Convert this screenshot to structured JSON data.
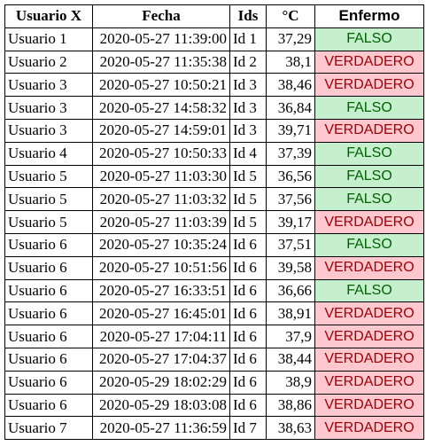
{
  "table": {
    "headers": [
      "Usuario X",
      "Fecha",
      "Ids",
      "°C",
      "Enfermo"
    ],
    "rows": [
      {
        "usuario": "Usuario 1",
        "fecha": "2020-05-27 11:39:00",
        "id": "Id 1",
        "temp": "37,29",
        "enfermo": "FALSO"
      },
      {
        "usuario": "Usuario 2",
        "fecha": "2020-05-27 11:35:38",
        "id": "Id 2",
        "temp": "38,1",
        "enfermo": "VERDADERO"
      },
      {
        "usuario": "Usuario 3",
        "fecha": "2020-05-27 10:50:21",
        "id": "Id 3",
        "temp": "38,46",
        "enfermo": "VERDADERO"
      },
      {
        "usuario": "Usuario 3",
        "fecha": "2020-05-27 14:58:32",
        "id": "Id 3",
        "temp": "36,84",
        "enfermo": "FALSO"
      },
      {
        "usuario": "Usuario 3",
        "fecha": "2020-05-27 14:59:01",
        "id": "Id 3",
        "temp": "39,71",
        "enfermo": "VERDADERO"
      },
      {
        "usuario": "Usuario 4",
        "fecha": "2020-05-27 10:50:33",
        "id": "Id 4",
        "temp": "37,39",
        "enfermo": "FALSO"
      },
      {
        "usuario": "Usuario 5",
        "fecha": "2020-05-27 11:03:30",
        "id": "Id 5",
        "temp": "36,56",
        "enfermo": "FALSO"
      },
      {
        "usuario": "Usuario 5",
        "fecha": "2020-05-27 11:03:32",
        "id": "Id 5",
        "temp": "37,56",
        "enfermo": "FALSO"
      },
      {
        "usuario": "Usuario 5",
        "fecha": "2020-05-27 11:03:39",
        "id": "Id 5",
        "temp": "39,17",
        "enfermo": "VERDADERO"
      },
      {
        "usuario": "Usuario 6",
        "fecha": "2020-05-27 10:35:24",
        "id": "Id 6",
        "temp": "37,51",
        "enfermo": "FALSO"
      },
      {
        "usuario": "Usuario 6",
        "fecha": "2020-05-27 10:51:56",
        "id": "Id 6",
        "temp": "39,58",
        "enfermo": "VERDADERO"
      },
      {
        "usuario": "Usuario 6",
        "fecha": "2020-05-27 16:33:51",
        "id": "Id 6",
        "temp": "36,66",
        "enfermo": "FALSO"
      },
      {
        "usuario": "Usuario 6",
        "fecha": "2020-05-27 16:45:01",
        "id": "Id 6",
        "temp": "38,91",
        "enfermo": "VERDADERO"
      },
      {
        "usuario": "Usuario 6",
        "fecha": "2020-05-27 17:04:11",
        "id": "Id 6",
        "temp": "37,9",
        "enfermo": "VERDADERO"
      },
      {
        "usuario": "Usuario 6",
        "fecha": "2020-05-27 17:04:37",
        "id": "Id 6",
        "temp": "38,44",
        "enfermo": "VERDADERO"
      },
      {
        "usuario": "Usuario 6",
        "fecha": "2020-05-29 18:02:29",
        "id": "Id 6",
        "temp": "38,9",
        "enfermo": "VERDADERO"
      },
      {
        "usuario": "Usuario 6",
        "fecha": "2020-05-29 18:03:08",
        "id": "Id 6",
        "temp": "38,86",
        "enfermo": "VERDADERO"
      },
      {
        "usuario": "Usuario 7",
        "fecha": "2020-05-27 11:36:59",
        "id": "Id 7",
        "temp": "38,63",
        "enfermo": "VERDADERO"
      }
    ]
  },
  "colors": {
    "false_fill": "#c6efce",
    "false_text": "#006100",
    "true_fill": "#ffc7ce",
    "true_text": "#9c0006"
  }
}
